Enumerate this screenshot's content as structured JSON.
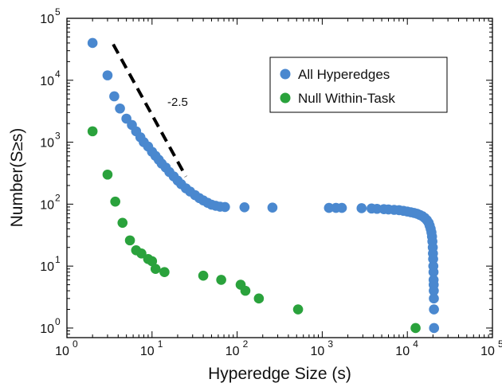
{
  "chart_data": {
    "type": "scatter",
    "xscale": "log",
    "yscale": "log",
    "xlim": [
      1,
      100000
    ],
    "ylim": [
      0.7,
      100000
    ],
    "xlabel": "Hyperedge Size (s)",
    "ylabel": "Number(S≥s)",
    "x_ticks": [
      {
        "value": 1,
        "base": "10",
        "exp": "0"
      },
      {
        "value": 10,
        "base": "10",
        "exp": "1"
      },
      {
        "value": 100,
        "base": "10",
        "exp": "2"
      },
      {
        "value": 1000,
        "base": "10",
        "exp": "3"
      },
      {
        "value": 10000,
        "base": "10",
        "exp": "4"
      },
      {
        "value": 100000,
        "base": "10",
        "exp": "5"
      }
    ],
    "y_ticks": [
      {
        "value": 1,
        "base": "10",
        "exp": "0"
      },
      {
        "value": 10,
        "base": "10",
        "exp": "1"
      },
      {
        "value": 100,
        "base": "10",
        "exp": "2"
      },
      {
        "value": 1000,
        "base": "10",
        "exp": "3"
      },
      {
        "value": 10000,
        "base": "10",
        "exp": "4"
      },
      {
        "value": 100000,
        "base": "10",
        "exp": "5"
      }
    ],
    "legend_position": "top-right",
    "grid": false,
    "series": [
      {
        "name": "All Hyperedges",
        "color": "#4a88cf",
        "points": [
          [
            2,
            40000
          ],
          [
            3,
            12000
          ],
          [
            3.6,
            5500
          ],
          [
            4.2,
            3500
          ],
          [
            5,
            2400
          ],
          [
            5.8,
            1900
          ],
          [
            6.5,
            1500
          ],
          [
            7.3,
            1200
          ],
          [
            8,
            1000
          ],
          [
            9,
            850
          ],
          [
            10,
            700
          ],
          [
            11,
            600
          ],
          [
            12,
            520
          ],
          [
            13,
            450
          ],
          [
            14.5,
            390
          ],
          [
            16,
            330
          ],
          [
            18,
            280
          ],
          [
            20,
            240
          ],
          [
            22,
            210
          ],
          [
            25,
            180
          ],
          [
            28,
            160
          ],
          [
            32,
            140
          ],
          [
            36,
            125
          ],
          [
            40,
            115
          ],
          [
            45,
            105
          ],
          [
            50,
            98
          ],
          [
            56,
            94
          ],
          [
            63,
            91
          ],
          [
            72,
            90
          ],
          [
            122,
            89
          ],
          [
            260,
            88
          ],
          [
            1200,
            87
          ],
          [
            1450,
            87
          ],
          [
            1700,
            87
          ],
          [
            2900,
            86
          ],
          [
            3800,
            85
          ],
          [
            4400,
            84
          ],
          [
            5300,
            83
          ],
          [
            6000,
            82
          ],
          [
            7000,
            81
          ],
          [
            8000,
            80
          ],
          [
            9000,
            78
          ],
          [
            10000,
            76
          ],
          [
            11000,
            74
          ],
          [
            12000,
            72
          ],
          [
            13000,
            70
          ],
          [
            14000,
            67
          ],
          [
            15000,
            64
          ],
          [
            16000,
            60
          ],
          [
            17000,
            55
          ],
          [
            17800,
            50
          ],
          [
            18300,
            45
          ],
          [
            18800,
            40
          ],
          [
            19200,
            35
          ],
          [
            19500,
            30
          ],
          [
            19700,
            25
          ],
          [
            19900,
            20
          ],
          [
            20000,
            16
          ],
          [
            20100,
            13
          ],
          [
            20200,
            10
          ],
          [
            20300,
            8
          ],
          [
            20350,
            6
          ],
          [
            20400,
            5
          ],
          [
            20450,
            4
          ],
          [
            20500,
            3
          ],
          [
            20550,
            2
          ],
          [
            20600,
            1
          ]
        ]
      },
      {
        "name": "Null Within-Task",
        "color": "#2aa23c",
        "points": [
          [
            2,
            1500
          ],
          [
            3,
            300
          ],
          [
            3.7,
            110
          ],
          [
            4.5,
            50
          ],
          [
            5.5,
            26
          ],
          [
            6.5,
            18
          ],
          [
            7.5,
            16
          ],
          [
            9,
            13
          ],
          [
            10,
            12
          ],
          [
            11,
            9
          ],
          [
            14,
            8
          ],
          [
            40,
            7
          ],
          [
            65,
            6
          ],
          [
            110,
            5
          ],
          [
            125,
            4
          ],
          [
            180,
            3
          ],
          [
            520,
            2
          ],
          [
            12500,
            1
          ]
        ]
      }
    ],
    "reference_line": {
      "label": "-2.5",
      "x": [
        3.5,
        25
      ],
      "slope": -2.5,
      "y_at_start": 38000
    },
    "annotation": "-2.5"
  }
}
